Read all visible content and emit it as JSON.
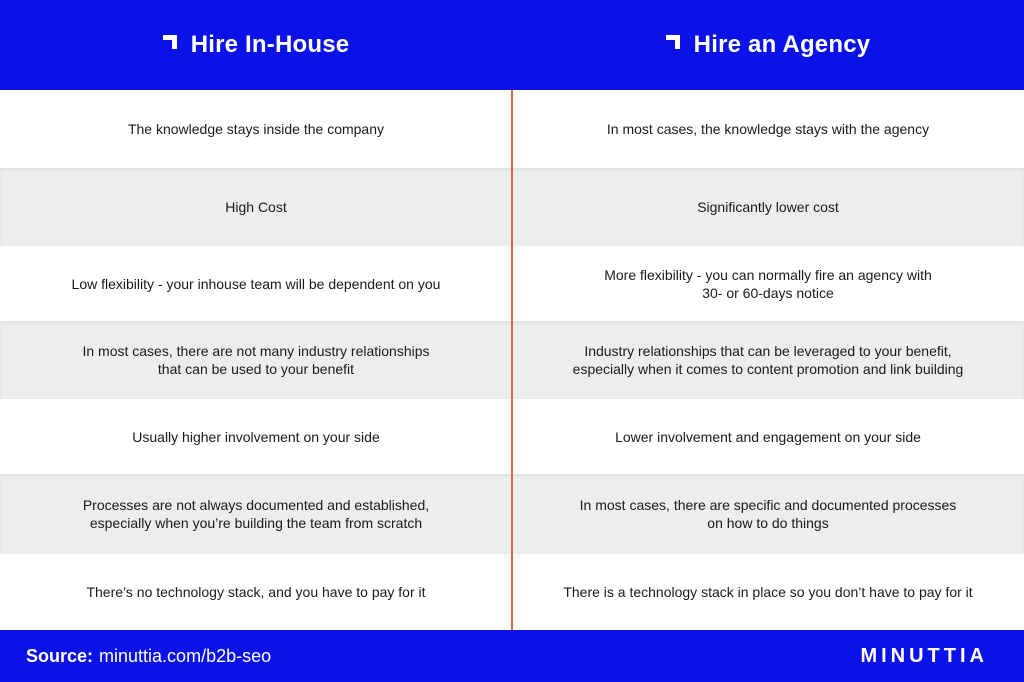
{
  "header": {
    "left_title": "Hire In-House",
    "right_title": "Hire an Agency"
  },
  "rows": [
    {
      "left": "The knowledge stays inside the company",
      "right": "In most cases, the knowledge stays with the agency"
    },
    {
      "left": "High Cost",
      "right": "Significantly lower cost"
    },
    {
      "left": "Low flexibility - your inhouse team will be dependent on you",
      "right": "More flexibility - you can normally fire an agency with\n30- or 60-days notice"
    },
    {
      "left": "In most cases, there are not many industry relationships\nthat can be used to your benefit",
      "right": "Industry relationships that can be leveraged to your benefit,\nespecially when it comes to content promotion and link building"
    },
    {
      "left": "Usually higher involvement on your side",
      "right": "Lower involvement and engagement on your side"
    },
    {
      "left": "Processes are not always documented and established,\nespecially when you’re building the team from scratch",
      "right": "In most cases, there are specific and documented processes\non how to do things"
    },
    {
      "left": "There’s no technology stack, and you have to pay for it",
      "right": "There is a technology stack in place so you don’t have to pay for it"
    }
  ],
  "footer": {
    "source_label": "Source:",
    "source_url": "minuttia.com/b2b-seo",
    "logo": "MINUTTIA"
  },
  "colors": {
    "brand_blue": "#0a12e8",
    "divider_orange": "#e2683c",
    "alt_row_gray": "#ededed"
  },
  "icons": [
    "corner-bracket-icon"
  ]
}
